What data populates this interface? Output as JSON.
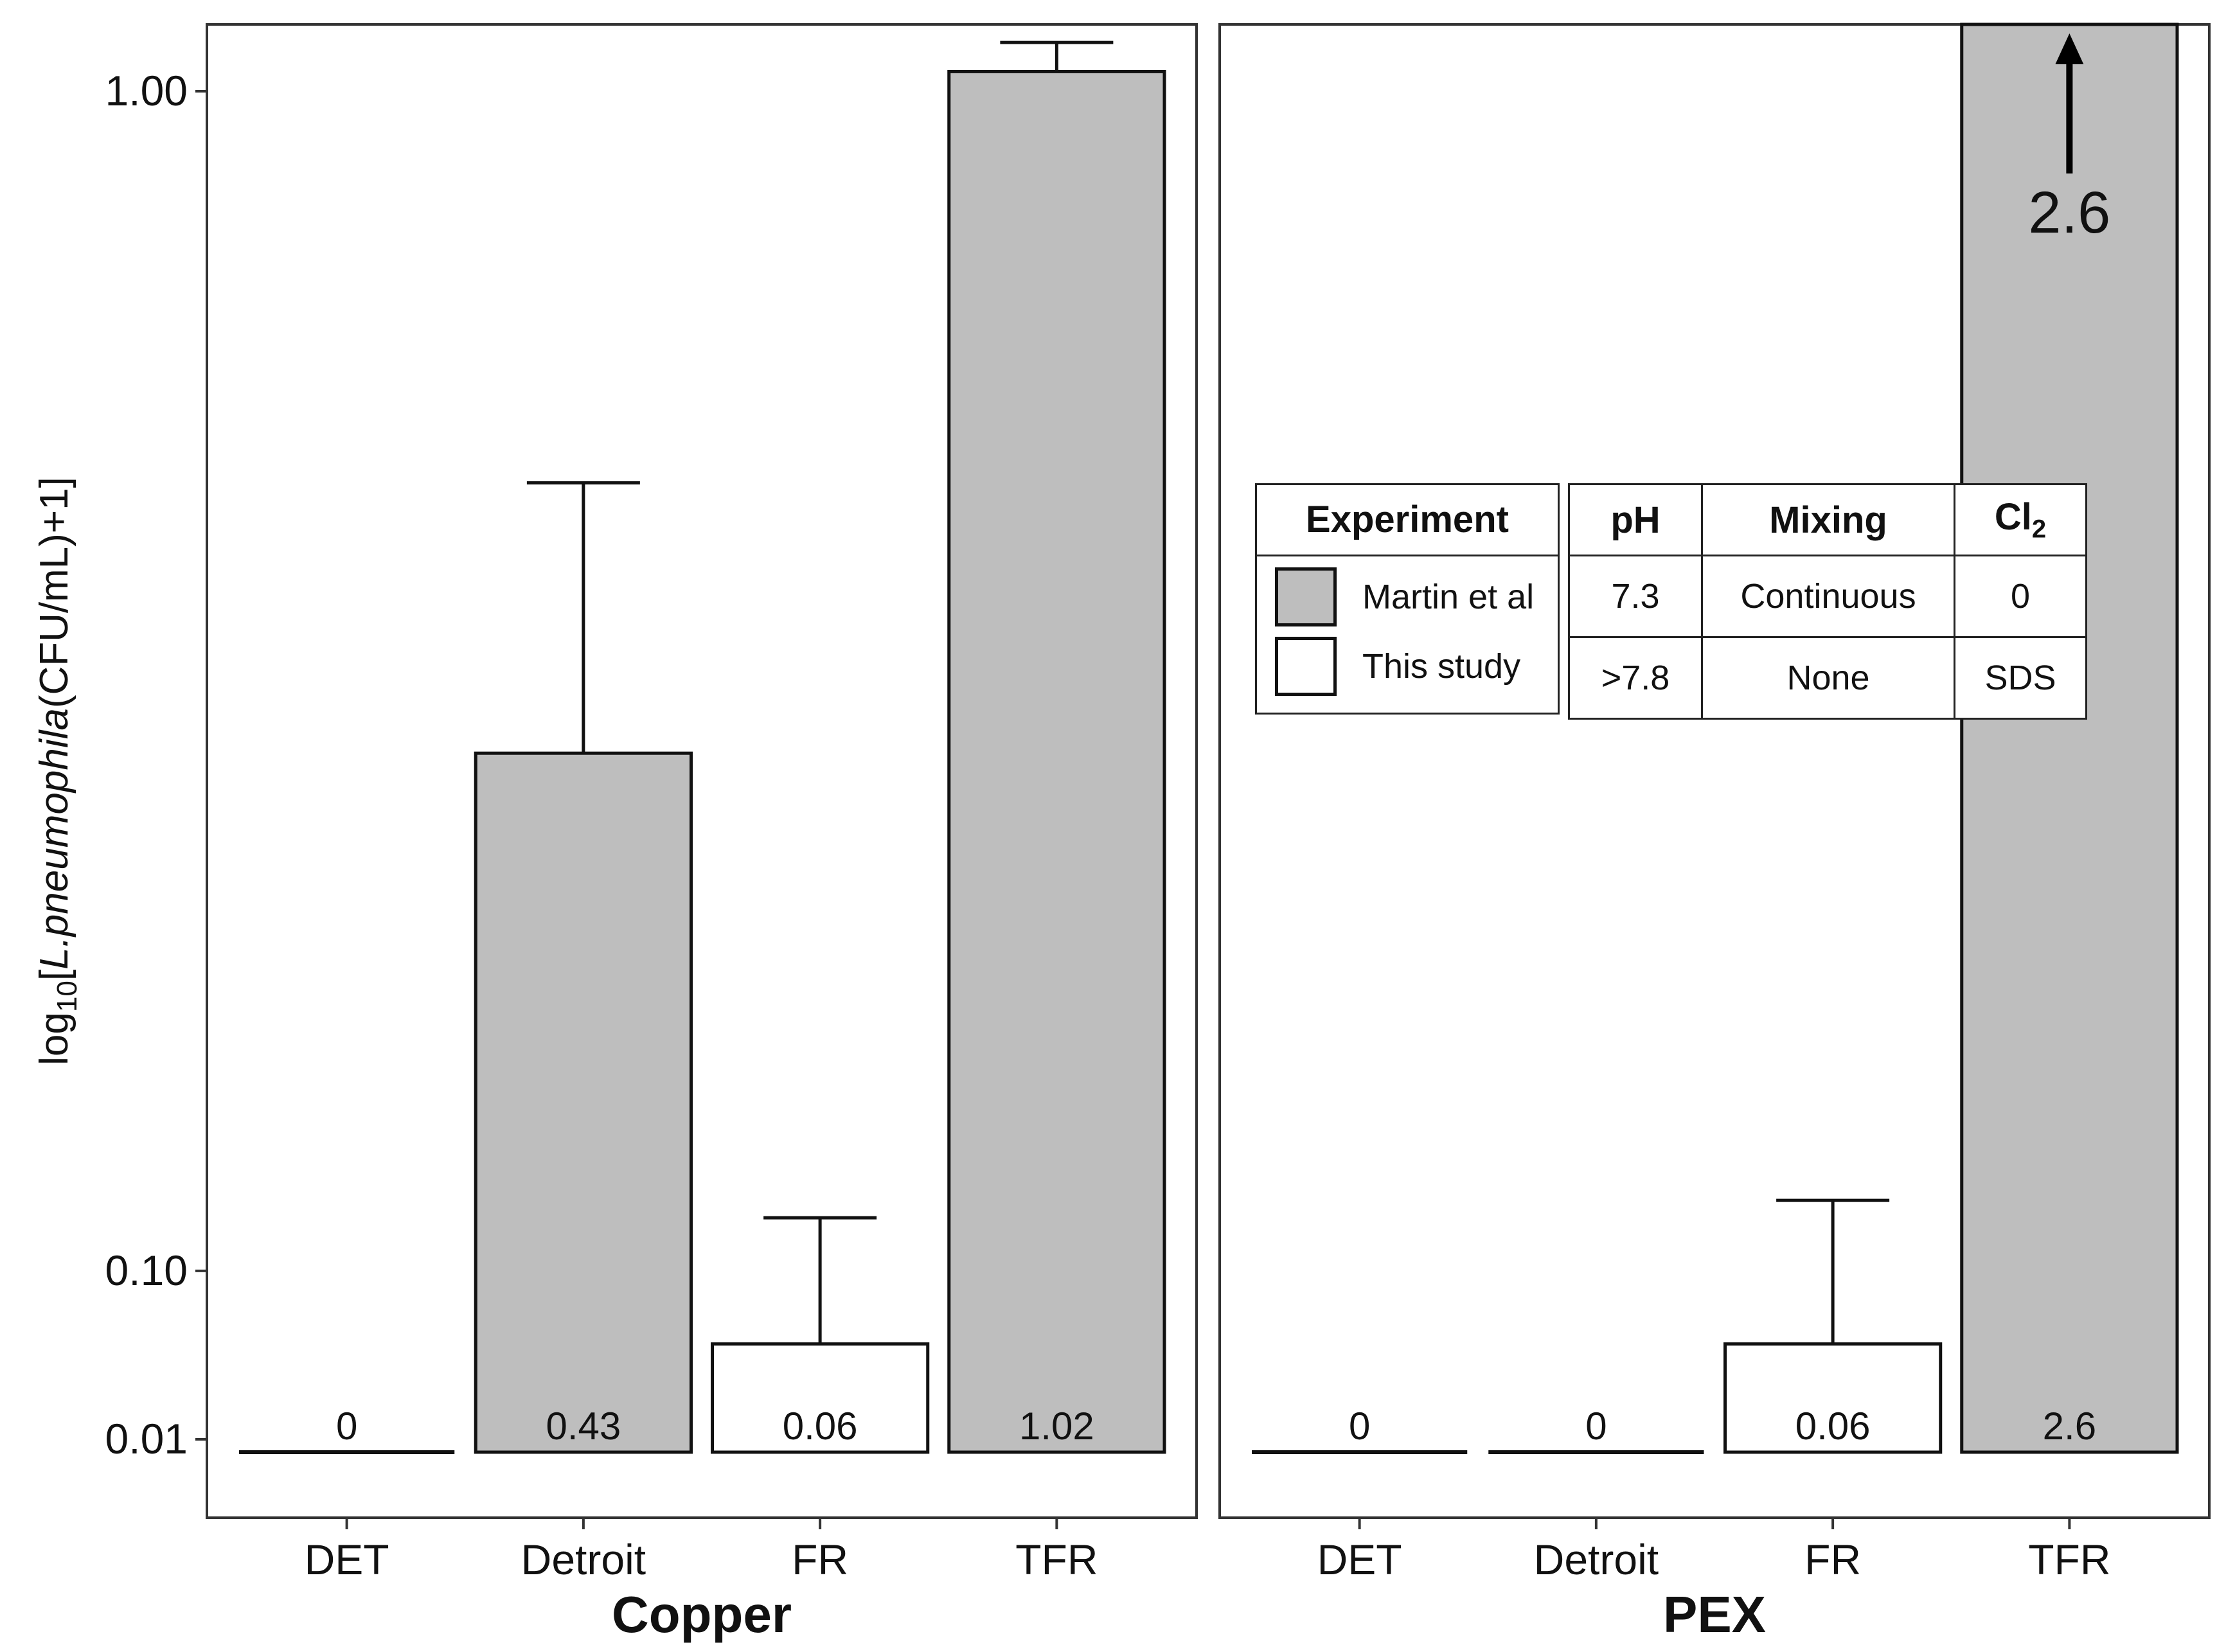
{
  "chart_data": {
    "type": "bar",
    "y_axis_label": {
      "prefix": "log",
      "sub": "10",
      "open": "[",
      "species": "L.pneumophila",
      "suffix": "(CFU/mL)+1]"
    },
    "y_ticks": [
      {
        "value": 0.01,
        "label": "0.01"
      },
      {
        "value": 0.1,
        "label": "0.10"
      },
      {
        "value": 1.0,
        "label": "1.00"
      }
    ],
    "categories": [
      "DET",
      "Detroit",
      "FR",
      "TFR"
    ],
    "panels": [
      {
        "title": "Copper",
        "bars": [
          {
            "category": "DET",
            "value": 0,
            "label": "0",
            "error_upper": null,
            "experiment": "This study"
          },
          {
            "category": "Detroit",
            "value": 0.43,
            "label": "0.43",
            "error_upper": 0.64,
            "experiment": "Martin et al"
          },
          {
            "category": "FR",
            "value": 0.06,
            "label": "0.06",
            "error_upper": 0.13,
            "experiment": "This study"
          },
          {
            "category": "TFR",
            "value": 1.02,
            "label": "1.02",
            "error_upper": 1.05,
            "experiment": "Martin et al"
          }
        ]
      },
      {
        "title": "PEX",
        "bars": [
          {
            "category": "DET",
            "value": 0,
            "label": "0",
            "error_upper": null,
            "experiment": "This study"
          },
          {
            "category": "Detroit",
            "value": 0,
            "label": "0",
            "error_upper": null,
            "experiment": "This study"
          },
          {
            "category": "FR",
            "value": 0.06,
            "label": "0.06",
            "error_upper": 0.14,
            "experiment": "This study"
          },
          {
            "category": "TFR",
            "value": 2.6,
            "label": "2.6",
            "error_upper": null,
            "experiment": "Martin et al",
            "off_scale_annotation": "2.6"
          }
        ]
      }
    ],
    "legend": {
      "title": "Experiment",
      "entries": [
        {
          "name": "Martin et al",
          "color": "#bebebe"
        },
        {
          "name": "This study",
          "color": "#ffffff"
        }
      ]
    },
    "conditions_table": {
      "headers": [
        "pH",
        "Mixing",
        "Cl",
        "2"
      ],
      "rows": [
        [
          "7.3",
          "Continuous",
          "0"
        ],
        [
          ">7.8",
          "None",
          "SDS"
        ]
      ]
    }
  }
}
